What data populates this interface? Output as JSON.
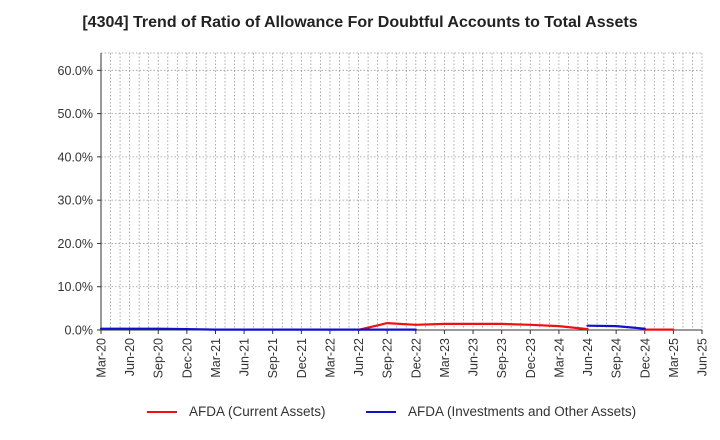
{
  "chart_data": {
    "type": "line",
    "title": "[4304]  Trend of Ratio of Allowance For Doubtful Accounts to Total Assets",
    "xlabel": "",
    "ylabel": "",
    "categories": [
      "Mar-20",
      "Jun-20",
      "Sep-20",
      "Dec-20",
      "Mar-21",
      "Jun-21",
      "Sep-21",
      "Dec-21",
      "Mar-22",
      "Jun-22",
      "Sep-22",
      "Dec-22",
      "Mar-23",
      "Jun-23",
      "Sep-23",
      "Dec-23",
      "Mar-24",
      "Jun-24",
      "Sep-24",
      "Dec-24",
      "Mar-25",
      "Jun-25"
    ],
    "ylim": [
      0,
      0.64
    ],
    "yticks": [
      0,
      0.1,
      0.2,
      0.3,
      0.4,
      0.5,
      0.6
    ],
    "ytick_labels": [
      "0.0%",
      "10.0%",
      "20.0%",
      "30.0%",
      "40.0%",
      "50.0%",
      "60.0%"
    ],
    "grid": true,
    "legend_position": "bottom",
    "series": [
      {
        "name": "AFDA (Current Assets)",
        "color": "#ee1111",
        "values": [
          null,
          null,
          null,
          null,
          null,
          null,
          null,
          null,
          null,
          0.0005,
          0.016,
          0.012,
          0.014,
          0.014,
          0.014,
          0.012,
          0.009,
          0.002,
          null,
          0.001,
          0.001,
          null
        ]
      },
      {
        "name": "AFDA (Investments and Other Assets)",
        "color": "#1111cc",
        "values": [
          0.003,
          0.003,
          0.003,
          0.002,
          0.001,
          0.001,
          0.001,
          0.001,
          0.001,
          0.001,
          0.001,
          0.001,
          null,
          null,
          null,
          null,
          null,
          0.01,
          0.009,
          0.003,
          null,
          null
        ]
      }
    ]
  }
}
